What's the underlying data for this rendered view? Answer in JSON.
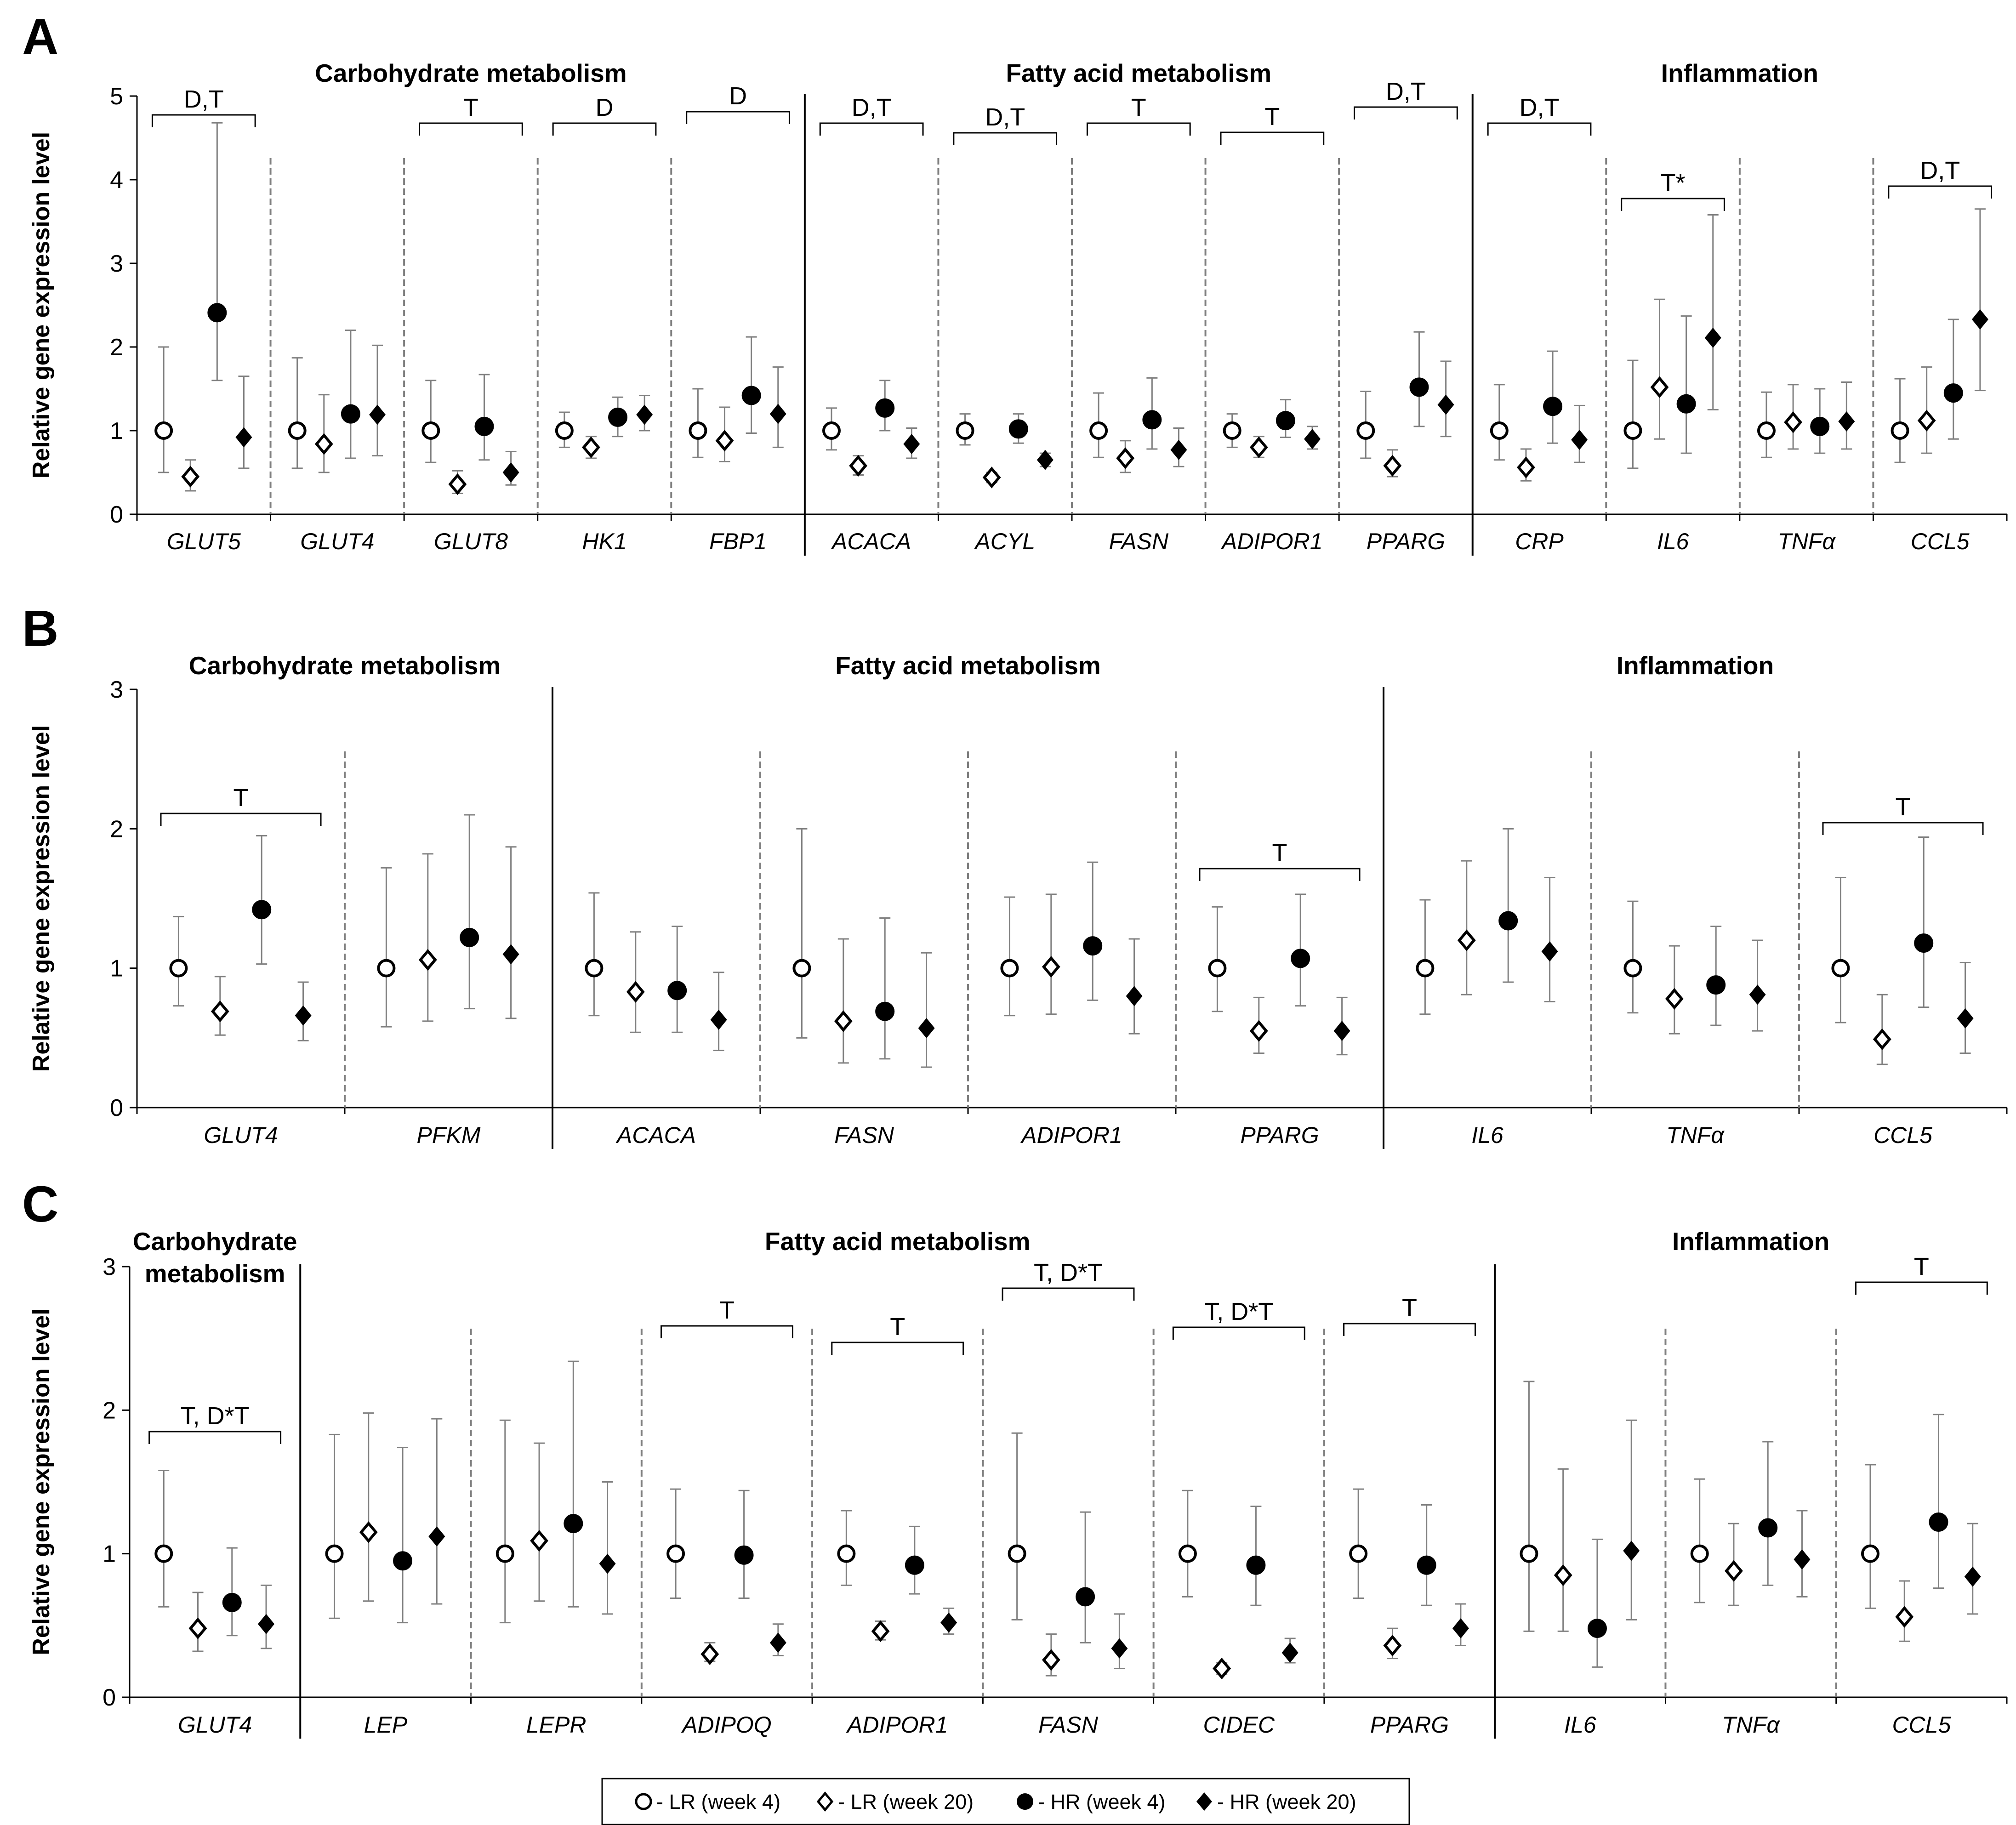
{
  "legend": [
    {
      "marker": "open-circle",
      "label": "- LR (week 4)"
    },
    {
      "marker": "open-diamond",
      "label": "- LR (week 20)"
    },
    {
      "marker": "filled-circle",
      "label": "- HR (week 4)"
    },
    {
      "marker": "filled-diamond",
      "label": "- HR (week 20)"
    }
  ],
  "chart_data": [
    {
      "panel": "A",
      "type": "scatter",
      "ylabel": "Relative gene expression level",
      "ylim": [
        0,
        5
      ],
      "yticks": [
        "0",
        "1",
        "2",
        "3",
        "4",
        "5"
      ],
      "sections": [
        {
          "title": "Carbohydrate metabolism",
          "genes": [
            "GLUT5",
            "GLUT4",
            "GLUT8",
            "HK1",
            "FBP1"
          ]
        },
        {
          "title": "Fatty acid metabolism",
          "genes": [
            "ACACA",
            "ACYL",
            "FASN",
            "ADIPOR1",
            "PPARG"
          ]
        },
        {
          "title": "Inflammation",
          "genes": [
            "CRP",
            "IL6",
            "TNFα",
            "CCL5"
          ]
        }
      ],
      "genes": [
        {
          "name": "GLUT5",
          "annotation": "D,T",
          "series": [
            [
              1.0,
              0.5,
              2.0
            ],
            [
              0.45,
              0.28,
              0.65
            ],
            [
              2.41,
              1.6,
              4.68
            ],
            [
              0.92,
              0.55,
              1.65
            ]
          ]
        },
        {
          "name": "GLUT4",
          "annotation": "",
          "series": [
            [
              1.0,
              0.55,
              1.87
            ],
            [
              0.84,
              0.5,
              1.43
            ],
            [
              1.2,
              0.67,
              2.2
            ],
            [
              1.19,
              0.7,
              2.02
            ]
          ]
        },
        {
          "name": "GLUT8",
          "annotation": "T",
          "series": [
            [
              1.0,
              0.62,
              1.6
            ],
            [
              0.36,
              0.25,
              0.52
            ],
            [
              1.05,
              0.65,
              1.67
            ],
            [
              0.5,
              0.35,
              0.75
            ]
          ]
        },
        {
          "name": "HK1",
          "annotation": "D",
          "series": [
            [
              1.0,
              0.8,
              1.22
            ],
            [
              0.8,
              0.67,
              0.93
            ],
            [
              1.16,
              0.93,
              1.4
            ],
            [
              1.19,
              1.0,
              1.42
            ]
          ]
        },
        {
          "name": "FBP1",
          "annotation": "D",
          "series": [
            [
              1.0,
              0.68,
              1.5
            ],
            [
              0.88,
              0.63,
              1.28
            ],
            [
              1.42,
              0.97,
              2.12
            ],
            [
              1.2,
              0.8,
              1.76
            ]
          ]
        },
        {
          "name": "ACACA",
          "annotation": "D,T",
          "series": [
            [
              1.0,
              0.77,
              1.27
            ],
            [
              0.58,
              0.47,
              0.7
            ],
            [
              1.27,
              1.0,
              1.6
            ],
            [
              0.84,
              0.67,
              1.03
            ]
          ]
        },
        {
          "name": "ACYL",
          "annotation": "D,T",
          "series": [
            [
              1.0,
              0.83,
              1.2
            ],
            [
              0.44,
              0.38,
              0.5
            ],
            [
              1.02,
              0.85,
              1.2
            ],
            [
              0.65,
              0.57,
              0.73
            ]
          ]
        },
        {
          "name": "FASN",
          "annotation": "T",
          "series": [
            [
              1.0,
              0.68,
              1.45
            ],
            [
              0.67,
              0.5,
              0.88
            ],
            [
              1.13,
              0.78,
              1.63
            ],
            [
              0.77,
              0.57,
              1.03
            ]
          ]
        },
        {
          "name": "ADIPOR1",
          "annotation": "T",
          "series": [
            [
              1.0,
              0.8,
              1.2
            ],
            [
              0.8,
              0.68,
              0.93
            ],
            [
              1.12,
              0.92,
              1.37
            ],
            [
              0.9,
              0.78,
              1.05
            ]
          ]
        },
        {
          "name": "PPARG",
          "annotation": "D,T",
          "series": [
            [
              1.0,
              0.67,
              1.47
            ],
            [
              0.58,
              0.45,
              0.77
            ],
            [
              1.52,
              1.05,
              2.18
            ],
            [
              1.31,
              0.93,
              1.83
            ]
          ]
        },
        {
          "name": "CRP",
          "annotation": "D,T",
          "series": [
            [
              1.0,
              0.65,
              1.55
            ],
            [
              0.56,
              0.4,
              0.78
            ],
            [
              1.29,
              0.85,
              1.95
            ],
            [
              0.89,
              0.62,
              1.3
            ]
          ]
        },
        {
          "name": "IL6",
          "annotation": "T*",
          "series": [
            [
              1.0,
              0.55,
              1.84
            ],
            [
              1.52,
              0.9,
              2.57
            ],
            [
              1.32,
              0.73,
              2.37
            ],
            [
              2.11,
              1.25,
              3.58
            ]
          ]
        },
        {
          "name": "TNFα",
          "annotation": "",
          "series": [
            [
              1.0,
              0.68,
              1.46
            ],
            [
              1.1,
              0.78,
              1.55
            ],
            [
              1.05,
              0.73,
              1.5
            ],
            [
              1.11,
              0.78,
              1.58
            ]
          ]
        },
        {
          "name": "CCL5",
          "annotation": "D,T",
          "series": [
            [
              1.0,
              0.62,
              1.62
            ],
            [
              1.12,
              0.73,
              1.76
            ],
            [
              1.45,
              0.9,
              2.33
            ],
            [
              2.33,
              1.48,
              3.65
            ]
          ]
        }
      ]
    },
    {
      "panel": "B",
      "type": "scatter",
      "ylabel": "Relative gene expression level",
      "ylim": [
        0,
        3
      ],
      "yticks": [
        "0",
        "1",
        "2",
        "3"
      ],
      "sections": [
        {
          "title": "Carbohydrate metabolism",
          "genes": [
            "GLUT4",
            "PFKM"
          ]
        },
        {
          "title": "Fatty acid metabolism",
          "genes": [
            "ACACA",
            "FASN",
            "ADIPOR1",
            "PPARG"
          ]
        },
        {
          "title": "Inflammation",
          "genes": [
            "IL6",
            "TNFα",
            "CCL5"
          ]
        }
      ],
      "genes": [
        {
          "name": "GLUT4",
          "annotation": "T",
          "series": [
            [
              1.0,
              0.73,
              1.37
            ],
            [
              0.69,
              0.52,
              0.94
            ],
            [
              1.42,
              1.03,
              1.95
            ],
            [
              0.66,
              0.48,
              0.9
            ]
          ]
        },
        {
          "name": "PFKM",
          "annotation": "",
          "series": [
            [
              1.0,
              0.58,
              1.72
            ],
            [
              1.06,
              0.62,
              1.82
            ],
            [
              1.22,
              0.71,
              2.1
            ],
            [
              1.1,
              0.64,
              1.87
            ]
          ]
        },
        {
          "name": "ACACA",
          "annotation": "",
          "series": [
            [
              1.0,
              0.66,
              1.54
            ],
            [
              0.83,
              0.54,
              1.26
            ],
            [
              0.84,
              0.54,
              1.3
            ],
            [
              0.63,
              0.41,
              0.97
            ]
          ]
        },
        {
          "name": "FASN",
          "annotation": "",
          "series": [
            [
              1.0,
              0.5,
              2.0
            ],
            [
              0.62,
              0.32,
              1.21
            ],
            [
              0.69,
              0.35,
              1.36
            ],
            [
              0.57,
              0.29,
              1.11
            ]
          ]
        },
        {
          "name": "ADIPOR1",
          "annotation": "",
          "series": [
            [
              1.0,
              0.66,
              1.51
            ],
            [
              1.01,
              0.67,
              1.53
            ],
            [
              1.16,
              0.77,
              1.76
            ],
            [
              0.8,
              0.53,
              1.21
            ]
          ]
        },
        {
          "name": "PPARG",
          "annotation": "T",
          "series": [
            [
              1.0,
              0.69,
              1.44
            ],
            [
              0.55,
              0.39,
              0.79
            ],
            [
              1.07,
              0.73,
              1.53
            ],
            [
              0.55,
              0.38,
              0.79
            ]
          ]
        },
        {
          "name": "IL6",
          "annotation": "",
          "series": [
            [
              1.0,
              0.67,
              1.49
            ],
            [
              1.2,
              0.81,
              1.77
            ],
            [
              1.34,
              0.9,
              2.0
            ],
            [
              1.12,
              0.76,
              1.65
            ]
          ]
        },
        {
          "name": "TNFα",
          "annotation": "",
          "series": [
            [
              1.0,
              0.68,
              1.48
            ],
            [
              0.78,
              0.53,
              1.16
            ],
            [
              0.88,
              0.59,
              1.3
            ],
            [
              0.81,
              0.55,
              1.2
            ]
          ]
        },
        {
          "name": "CCL5",
          "annotation": "T",
          "series": [
            [
              1.0,
              0.61,
              1.65
            ],
            [
              0.49,
              0.31,
              0.81
            ],
            [
              1.18,
              0.72,
              1.94
            ],
            [
              0.64,
              0.39,
              1.04
            ]
          ]
        }
      ]
    },
    {
      "panel": "C",
      "type": "scatter",
      "ylabel": "Relative gene expression level",
      "ylim": [
        0,
        3
      ],
      "yticks": [
        "0",
        "1",
        "2",
        "3"
      ],
      "sections": [
        {
          "title": "Carbohydrate metabolism",
          "title_lines": [
            "Carbohydrate",
            "metabolism"
          ],
          "genes": [
            "GLUT4"
          ]
        },
        {
          "title": "Fatty acid metabolism",
          "genes": [
            "LEP",
            "LEPR",
            "ADIPOQ",
            "ADIPOR1",
            "FASN",
            "CIDEC",
            "PPARG"
          ]
        },
        {
          "title": "Inflammation",
          "genes": [
            "IL6",
            "TNFα",
            "CCL5"
          ]
        }
      ],
      "genes": [
        {
          "name": "GLUT4",
          "annotation": "T, D*T",
          "series": [
            [
              1.0,
              0.63,
              1.58
            ],
            [
              0.48,
              0.32,
              0.73
            ],
            [
              0.66,
              0.43,
              1.04
            ],
            [
              0.51,
              0.34,
              0.78
            ]
          ]
        },
        {
          "name": "LEP",
          "annotation": "",
          "series": [
            [
              1.0,
              0.55,
              1.83
            ],
            [
              1.15,
              0.67,
              1.98
            ],
            [
              0.95,
              0.52,
              1.74
            ],
            [
              1.12,
              0.65,
              1.94
            ]
          ]
        },
        {
          "name": "LEPR",
          "annotation": "",
          "series": [
            [
              1.0,
              0.52,
              1.93
            ],
            [
              1.09,
              0.67,
              1.77
            ],
            [
              1.21,
              0.63,
              2.34
            ],
            [
              0.93,
              0.58,
              1.5
            ]
          ]
        },
        {
          "name": "ADIPOQ",
          "annotation": "T",
          "series": [
            [
              1.0,
              0.69,
              1.45
            ],
            [
              0.3,
              0.25,
              0.38
            ],
            [
              0.99,
              0.69,
              1.44
            ],
            [
              0.38,
              0.29,
              0.51
            ]
          ]
        },
        {
          "name": "ADIPOR1",
          "annotation": "T",
          "series": [
            [
              1.0,
              0.78,
              1.3
            ],
            [
              0.46,
              0.4,
              0.53
            ],
            [
              0.92,
              0.72,
              1.19
            ],
            [
              0.52,
              0.44,
              0.62
            ]
          ]
        },
        {
          "name": "FASN",
          "annotation": "T, D*T",
          "series": [
            [
              1.0,
              0.54,
              1.84
            ],
            [
              0.26,
              0.15,
              0.44
            ],
            [
              0.7,
              0.38,
              1.29
            ],
            [
              0.34,
              0.2,
              0.58
            ]
          ]
        },
        {
          "name": "CIDEC",
          "annotation": "T, D*T",
          "series": [
            [
              1.0,
              0.7,
              1.44
            ],
            [
              0.2,
              0.16,
              0.24
            ],
            [
              0.92,
              0.64,
              1.33
            ],
            [
              0.31,
              0.24,
              0.41
            ]
          ]
        },
        {
          "name": "PPARG",
          "annotation": "T",
          "series": [
            [
              1.0,
              0.69,
              1.45
            ],
            [
              0.36,
              0.27,
              0.48
            ],
            [
              0.92,
              0.64,
              1.34
            ],
            [
              0.48,
              0.36,
              0.65
            ]
          ]
        },
        {
          "name": "IL6",
          "annotation": "",
          "series": [
            [
              1.0,
              0.46,
              2.2
            ],
            [
              0.85,
              0.46,
              1.59
            ],
            [
              0.48,
              0.21,
              1.1
            ],
            [
              1.02,
              0.54,
              1.93
            ]
          ]
        },
        {
          "name": "TNFα",
          "annotation": "",
          "series": [
            [
              1.0,
              0.66,
              1.52
            ],
            [
              0.88,
              0.64,
              1.21
            ],
            [
              1.18,
              0.78,
              1.78
            ],
            [
              0.96,
              0.7,
              1.3
            ]
          ]
        },
        {
          "name": "CCL5",
          "annotation": "T",
          "series": [
            [
              1.0,
              0.62,
              1.62
            ],
            [
              0.56,
              0.39,
              0.81
            ],
            [
              1.22,
              0.76,
              1.97
            ],
            [
              0.84,
              0.58,
              1.21
            ]
          ]
        }
      ]
    }
  ],
  "colors": {
    "ink": "#000000",
    "divider": "#7f7f7f",
    "errorbar": "#808080",
    "background": "#ffffff"
  }
}
